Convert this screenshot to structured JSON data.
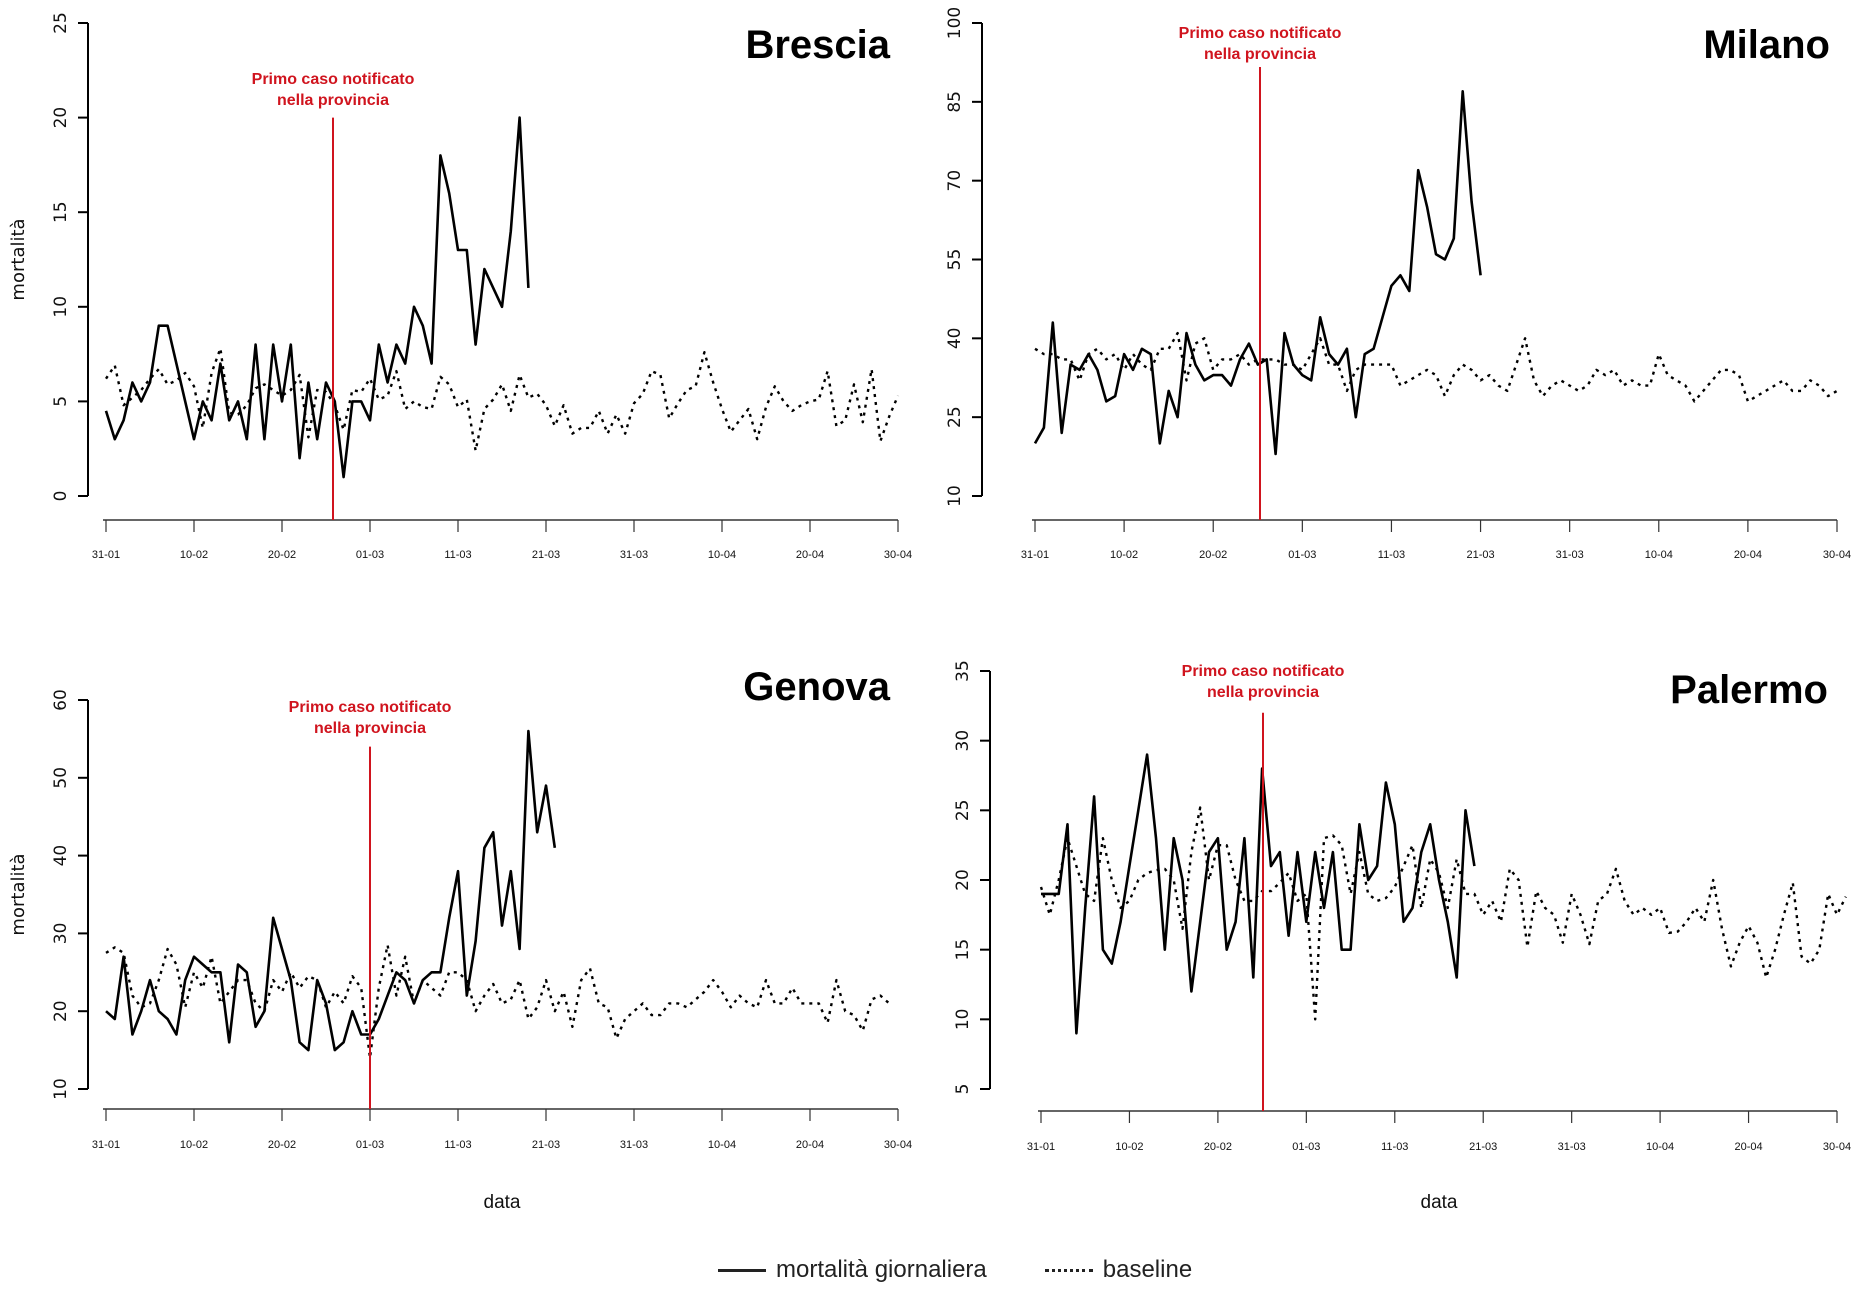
{
  "figure": {
    "legend": [
      {
        "label": "mortalità giornaliera",
        "style": "solid"
      },
      {
        "label": "baseline",
        "style": "dotted"
      }
    ],
    "annotation_color": "#d0141e",
    "line_color": "#000000"
  },
  "chart_data": [
    {
      "type": "line",
      "title": "Brescia",
      "xlabel": "",
      "ylabel": "mortalità",
      "ylim": [
        0,
        25
      ],
      "yticks": [
        0,
        5,
        10,
        15,
        20,
        25
      ],
      "xlim_days": [
        0,
        90
      ],
      "xtick_labels": [
        "31-01",
        "10-02",
        "20-02",
        "01-03",
        "11-03",
        "21-03",
        "31-03",
        "10-04",
        "20-04",
        "30-04"
      ],
      "annotation": {
        "text_lines": [
          "Primo caso notificato",
          "nella provincia"
        ],
        "day": 25.3,
        "ymax": 20
      },
      "series": [
        {
          "name": "mortalità giornaliera",
          "style": "solid",
          "values": [
            4.5,
            3,
            4,
            6,
            5,
            6,
            9,
            9,
            7,
            5,
            3,
            5,
            4,
            7,
            4,
            5,
            3,
            8,
            3,
            8,
            5,
            8,
            2,
            6,
            3,
            6,
            5,
            1,
            5,
            5,
            4,
            8,
            6,
            8,
            7,
            10,
            9,
            7,
            18,
            16,
            13,
            13,
            8,
            12,
            11,
            10,
            14,
            20,
            11
          ]
        },
        {
          "name": "baseline",
          "style": "dotted",
          "values": [
            6.2,
            6.9,
            4.8,
            5.2,
            5.6,
            6.2,
            6.7,
            5.9,
            6.1,
            6.5,
            5.8,
            3.6,
            6.5,
            7.8,
            4.4,
            4.3,
            4.8,
            5.7,
            5.9,
            5.6,
            5.3,
            5.6,
            6.4,
            3.1,
            5.6,
            5.5,
            4.8,
            3.5,
            5.6,
            5.5,
            6.2,
            5.1,
            5.3,
            6.6,
            4.6,
            5.0,
            4.7,
            4.6,
            6.3,
            5.9,
            4.7,
            5.1,
            2.4,
            4.6,
            5.1,
            5.9,
            4.5,
            6.4,
            5.2,
            5.4,
            4.8,
            3.7,
            4.8,
            3.3,
            3.6,
            3.6,
            4.5,
            3.3,
            4.3,
            3.3,
            4.9,
            5.4,
            6.6,
            6.4,
            4.1,
            4.9,
            5.6,
            5.8,
            7.6,
            6.0,
            4.6,
            3.4,
            4.0,
            4.6,
            3.0,
            4.7,
            5.8,
            5.0,
            4.5,
            4.8,
            5.0,
            5.1,
            6.6,
            3.7,
            4.0,
            5.9,
            3.9,
            6.7,
            2.9,
            4.2,
            5.3
          ]
        }
      ]
    },
    {
      "type": "line",
      "title": "Milano",
      "xlabel": "",
      "ylabel": "",
      "ylim": [
        10,
        100
      ],
      "yticks": [
        10,
        25,
        40,
        55,
        70,
        85,
        100
      ],
      "xlim_days": [
        0,
        90
      ],
      "xtick_labels": [
        "31-01",
        "10-02",
        "20-02",
        "01-03",
        "11-03",
        "21-03",
        "31-03",
        "10-04",
        "20-04",
        "30-04"
      ],
      "annotation": {
        "text_lines": [
          "Primo caso notificato",
          "nella provincia"
        ],
        "day": 25.2,
        "ymax": 92
      },
      "series": [
        {
          "name": "mortalità giornaliera",
          "style": "solid",
          "values": [
            20,
            23,
            43,
            22,
            35,
            34,
            37,
            34,
            28,
            29,
            37,
            34,
            38,
            37,
            20,
            30,
            25,
            41,
            35,
            32,
            33,
            33,
            31,
            36,
            39,
            35,
            36,
            18,
            41,
            35,
            33,
            32,
            44,
            37,
            35,
            38,
            25,
            37,
            38,
            44,
            50,
            52,
            49,
            72,
            65,
            56,
            55,
            59,
            87,
            66,
            52
          ]
        },
        {
          "name": "baseline",
          "style": "dotted",
          "values": [
            38,
            37,
            37,
            36,
            36,
            32,
            37,
            38,
            36,
            37,
            34,
            37,
            35,
            34,
            38,
            38,
            41,
            32,
            39,
            40,
            34,
            36,
            36,
            37,
            35,
            36,
            36,
            36,
            35,
            35,
            34,
            37,
            40,
            35,
            35,
            30,
            34,
            35,
            35,
            35,
            35,
            31,
            32,
            33,
            34,
            33,
            29,
            33,
            35,
            34,
            32,
            33,
            31,
            30,
            35,
            40,
            32,
            29,
            31,
            32,
            31,
            30,
            31,
            34,
            33,
            34,
            31,
            32,
            31,
            31,
            37,
            33,
            32,
            31,
            28,
            30,
            32,
            34,
            34,
            33,
            28,
            29,
            30,
            31,
            32,
            30,
            30,
            32,
            31,
            29,
            30
          ]
        }
      ]
    },
    {
      "type": "line",
      "title": "Genova",
      "xlabel": "data",
      "ylabel": "mortalità",
      "ylim": [
        10,
        60
      ],
      "yticks": [
        10,
        20,
        30,
        40,
        50,
        60
      ],
      "xlim_days": [
        0,
        90
      ],
      "xtick_labels": [
        "31-01",
        "10-02",
        "20-02",
        "01-03",
        "11-03",
        "21-03",
        "31-03",
        "10-04",
        "20-04",
        "30-04"
      ],
      "annotation": {
        "text_lines": [
          "Primo caso notificato",
          "nella provincia"
        ],
        "day": 30,
        "ymax": 54
      },
      "series": [
        {
          "name": "mortalità giornaliera",
          "style": "solid",
          "values": [
            20,
            19,
            27,
            17,
            20,
            24,
            20,
            19,
            17,
            24,
            27,
            26,
            25,
            25,
            16,
            26,
            25,
            18,
            20,
            32,
            28,
            24,
            16,
            15,
            24,
            21,
            15,
            16,
            20,
            17,
            17,
            19,
            22,
            25,
            24,
            21,
            24,
            25,
            25,
            32,
            38,
            22,
            29,
            41,
            43,
            31,
            38,
            28,
            56,
            43,
            49,
            41
          ]
        },
        {
          "name": "baseline",
          "style": "dotted",
          "values": [
            27.5,
            28.2,
            27.5,
            22,
            20.5,
            21,
            24,
            28,
            26,
            20.5,
            25,
            23,
            27,
            21,
            22.5,
            24,
            24,
            21,
            20,
            24,
            22.5,
            25,
            23,
            24.5,
            24,
            20.5,
            22.5,
            21,
            24.5,
            23,
            14,
            23,
            28.5,
            22,
            27,
            21,
            24,
            23,
            22,
            25,
            25,
            24,
            20,
            22,
            23.5,
            21,
            21.5,
            24,
            19,
            20.5,
            24,
            20,
            22.5,
            18,
            24,
            25.5,
            21,
            20.5,
            16.5,
            19,
            20,
            21,
            19.5,
            19.5,
            21,
            21,
            20.5,
            21.5,
            22.5,
            24,
            22.5,
            20.5,
            22,
            21,
            20.5,
            24,
            21,
            21,
            23,
            21,
            21,
            21,
            18.5,
            24,
            20,
            19.5,
            17.5,
            21.5,
            22,
            21
          ]
        }
      ]
    },
    {
      "type": "line",
      "title": "Palermo",
      "xlabel": "data",
      "ylabel": "",
      "ylim": [
        5,
        35
      ],
      "yticks": [
        5,
        10,
        15,
        20,
        25,
        30,
        35
      ],
      "xlim_days": [
        0,
        90
      ],
      "xtick_labels": [
        "31-01",
        "10-02",
        "20-02",
        "01-03",
        "11-03",
        "21-03",
        "31-03",
        "10-04",
        "20-04",
        "30-04"
      ],
      "annotation": {
        "text_lines": [
          "Primo caso notificato",
          "nella provincia"
        ],
        "day": 25.1,
        "ymax": 32
      },
      "series": [
        {
          "name": "mortalità giornaliera",
          "style": "solid",
          "values": [
            19,
            19,
            19,
            24,
            9,
            18,
            26,
            15,
            14,
            17,
            21,
            25,
            29,
            23,
            15,
            23,
            20,
            12,
            17,
            22,
            23,
            15,
            17,
            23,
            13,
            28,
            21,
            22,
            16,
            22,
            17,
            22,
            18,
            22,
            15,
            15,
            24,
            20,
            21,
            27,
            24,
            17,
            18,
            22,
            24,
            20,
            17,
            13,
            25,
            21
          ]
        },
        {
          "name": "baseline",
          "style": "dotted",
          "values": [
            19.5,
            17.5,
            20,
            23,
            21,
            19,
            18.5,
            23,
            20,
            18,
            18.5,
            20,
            20.5,
            20.7,
            20.8,
            20,
            16.5,
            22,
            25.2,
            20,
            22.5,
            22.5,
            20,
            18.5,
            18.5,
            19.2,
            19.2,
            19.8,
            20.5,
            18.5,
            19,
            10,
            23,
            23.2,
            22.5,
            19,
            22,
            19,
            18.5,
            18.7,
            19.5,
            21,
            22.5,
            18,
            21.5,
            20.5,
            18,
            21.5,
            19,
            19,
            17.5,
            18.5,
            17,
            20.8,
            20,
            15.2,
            19.2,
            18,
            17.5,
            15.5,
            19,
            17.5,
            15.4,
            18.5,
            19,
            20.8,
            18.5,
            17.5,
            18,
            17.5,
            18,
            16.2,
            16.3,
            17,
            18,
            17,
            20,
            16.5,
            13.8,
            15.5,
            16.7,
            15.5,
            13,
            15,
            17.5,
            19.8,
            14.5,
            14,
            15,
            19,
            17.5,
            18.8
          ]
        }
      ]
    }
  ]
}
